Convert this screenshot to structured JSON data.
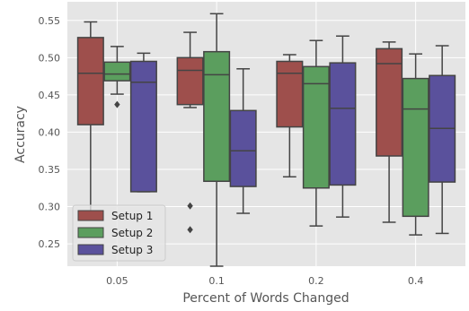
{
  "chart_data": {
    "type": "box",
    "title": "",
    "xlabel": "Percent of Words Changed",
    "ylabel": "Accuracy",
    "categories": [
      "0.05",
      "0.1",
      "0.2",
      "0.4"
    ],
    "ylim": [
      0.22,
      0.575
    ],
    "yticks": [
      "0.25",
      "0.30",
      "0.35",
      "0.40",
      "0.45",
      "0.50",
      "0.55"
    ],
    "ytick_values": [
      0.25,
      0.3,
      0.35,
      0.4,
      0.45,
      0.5,
      0.55
    ],
    "grid": true,
    "legend_position": "lower-left",
    "series": [
      {
        "name": "Setup 1",
        "color": "#9e4f4c",
        "boxes": [
          {
            "whisker_low": 0.293,
            "q1": 0.41,
            "median": 0.479,
            "q3": 0.527,
            "whisker_high": 0.548,
            "outliers": []
          },
          {
            "whisker_low": 0.433,
            "q1": 0.437,
            "median": 0.483,
            "q3": 0.5,
            "whisker_high": 0.534,
            "outliers": [
              0.301,
              0.269
            ]
          },
          {
            "whisker_low": 0.34,
            "q1": 0.407,
            "median": 0.479,
            "q3": 0.495,
            "whisker_high": 0.504,
            "outliers": []
          },
          {
            "whisker_low": 0.279,
            "q1": 0.368,
            "median": 0.492,
            "q3": 0.512,
            "whisker_high": 0.521,
            "outliers": []
          }
        ]
      },
      {
        "name": "Setup 2",
        "color": "#5b9e5e",
        "boxes": [
          {
            "whisker_low": 0.451,
            "q1": 0.469,
            "median": 0.478,
            "q3": 0.494,
            "whisker_high": 0.515,
            "outliers": [
              0.437
            ]
          },
          {
            "whisker_low": 0.22,
            "q1": 0.334,
            "median": 0.477,
            "q3": 0.508,
            "whisker_high": 0.559,
            "outliers": []
          },
          {
            "whisker_low": 0.274,
            "q1": 0.325,
            "median": 0.465,
            "q3": 0.488,
            "whisker_high": 0.523,
            "outliers": []
          },
          {
            "whisker_low": 0.262,
            "q1": 0.287,
            "median": 0.431,
            "q3": 0.472,
            "whisker_high": 0.505,
            "outliers": []
          }
        ]
      },
      {
        "name": "Setup 3",
        "color": "#5a519c",
        "boxes": [
          {
            "whisker_low": 0.32,
            "q1": 0.32,
            "median": 0.467,
            "q3": 0.495,
            "whisker_high": 0.506,
            "outliers": []
          },
          {
            "whisker_low": 0.291,
            "q1": 0.327,
            "median": 0.375,
            "q3": 0.429,
            "whisker_high": 0.485,
            "outliers": []
          },
          {
            "whisker_low": 0.286,
            "q1": 0.329,
            "median": 0.432,
            "q3": 0.493,
            "whisker_high": 0.529,
            "outliers": []
          },
          {
            "whisker_low": 0.264,
            "q1": 0.333,
            "median": 0.405,
            "q3": 0.476,
            "whisker_high": 0.516,
            "outliers": []
          }
        ]
      }
    ]
  }
}
